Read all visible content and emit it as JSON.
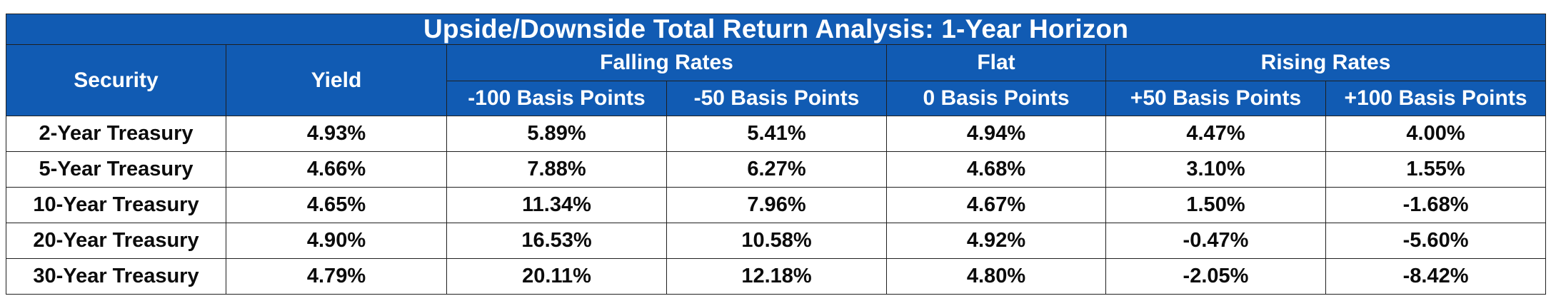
{
  "title": "Upside/Downside Total Return Analysis: 1-Year Horizon",
  "headers": {
    "security": "Security",
    "yield": "Yield",
    "falling": "Falling Rates",
    "flat": "Flat",
    "rising": "Rising Rates",
    "scenarios": [
      "-100 Basis Points",
      "-50 Basis Points",
      "0 Basis Points",
      "+50 Basis Points",
      "+100 Basis Points"
    ]
  },
  "rows": [
    {
      "security": "2-Year Treasury",
      "values": [
        "4.93%",
        "5.89%",
        "5.41%",
        "4.94%",
        "4.47%",
        "4.00%"
      ]
    },
    {
      "security": "5-Year Treasury",
      "values": [
        "4.66%",
        "7.88%",
        "6.27%",
        "4.68%",
        "3.10%",
        "1.55%"
      ]
    },
    {
      "security": "10-Year Treasury",
      "values": [
        "4.65%",
        "11.34%",
        "7.96%",
        "4.67%",
        "1.50%",
        "-1.68%"
      ]
    },
    {
      "security": "20-Year Treasury",
      "values": [
        "4.90%",
        "16.53%",
        "10.58%",
        "4.92%",
        "-0.47%",
        "-5.60%"
      ]
    },
    {
      "security": "30-Year Treasury",
      "values": [
        "4.79%",
        "20.11%",
        "12.18%",
        "4.80%",
        "-2.05%",
        "-8.42%"
      ]
    }
  ],
  "colors": {
    "header_background": "#115bb3",
    "header_text": "#ffffff",
    "body_text": "#0b0b0b",
    "border": "#1f1f1f"
  }
}
